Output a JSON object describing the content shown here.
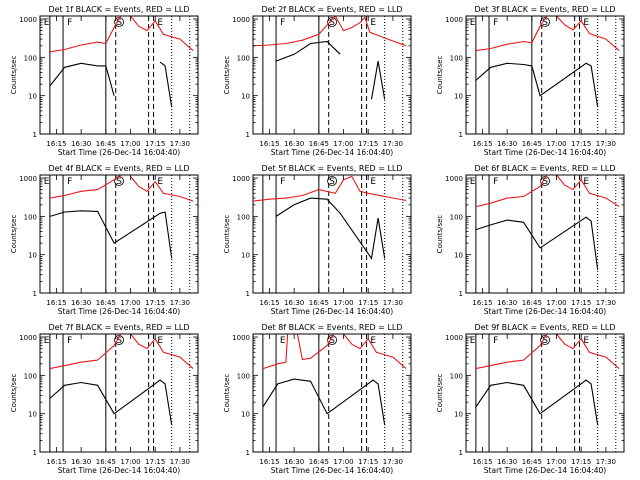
{
  "figure": {
    "background": "#ffffff",
    "axis_color": "#000000",
    "events_color": "#000000",
    "lld_color": "#e8191d",
    "ylabel": "Counts/sec",
    "xlabel": "Start Time (26-Dec-14 16:04:40)",
    "x_tick_labels": [
      "16:15",
      "16:30",
      "16:45",
      "17:00",
      "17:15",
      "17:30"
    ],
    "y_tick_labels": [
      "1",
      "10",
      "100",
      "1000"
    ]
  },
  "chart_data": [
    {
      "type": "line",
      "title": "Det 1f BLACK = Events, RED = LLD",
      "xlabel": "Start Time (26-Dec-14 16:04:40)",
      "ylabel": "Counts/sec",
      "yscale": "log",
      "ylim": [
        1,
        1200
      ],
      "xlim": [
        "16:05",
        "17:41"
      ],
      "x_ticks": [
        "16:15",
        "16:30",
        "16:45",
        "17:00",
        "17:15",
        "17:30"
      ],
      "marker_letters": [
        "E",
        "F",
        "S",
        "E"
      ],
      "series": [
        {
          "name": "Events",
          "color": "#000000",
          "x": [
            "16:11",
            "16:20",
            "16:30",
            "16:40",
            "16:45",
            "16:50",
            "17:10",
            "17:18",
            "17:21",
            "17:25"
          ],
          "y": [
            18,
            55,
            70,
            60,
            60,
            10,
            null,
            75,
            60,
            5
          ]
        },
        {
          "name": "LLD",
          "color": "#e8191d",
          "x": [
            "16:11",
            "16:20",
            "16:30",
            "16:40",
            "16:45",
            "16:50",
            "16:54",
            "16:56",
            "17:00",
            "17:05",
            "17:10",
            "17:15",
            "17:20",
            "17:30",
            "17:38"
          ],
          "y": [
            140,
            160,
            210,
            250,
            230,
            600,
            1200,
            null,
            1200,
            650,
            500,
            900,
            400,
            300,
            150
          ]
        }
      ]
    },
    {
      "type": "line",
      "title": "Det 2f BLACK = Events, RED = LLD",
      "xlabel": "Start Time (26-Dec-14 16:04:40)",
      "ylabel": "Counts/sec",
      "yscale": "log",
      "ylim": [
        1,
        1200
      ],
      "xlim": [
        "16:05",
        "17:41"
      ],
      "x_ticks": [
        "16:15",
        "16:30",
        "16:45",
        "17:00",
        "17:15",
        "17:30"
      ],
      "marker_letters": [
        "F",
        "S",
        "E"
      ],
      "series": [
        {
          "name": "Events",
          "color": "#000000",
          "x": [
            "16:19",
            "16:30",
            "16:40",
            "16:50",
            "16:58",
            "17:15",
            "17:17",
            "17:21",
            "17:25"
          ],
          "y": [
            80,
            120,
            230,
            260,
            120,
            null,
            8,
            80,
            8
          ]
        },
        {
          "name": "LLD",
          "color": "#e8191d",
          "x": [
            "16:05",
            "16:15",
            "16:25",
            "16:35",
            "16:45",
            "16:55",
            "17:00",
            "17:05",
            "17:10",
            "17:13",
            "17:16",
            "17:25",
            "17:38"
          ],
          "y": [
            200,
            210,
            230,
            280,
            400,
            1200,
            500,
            600,
            800,
            1100,
            450,
            320,
            200
          ]
        }
      ]
    },
    {
      "type": "line",
      "title": "Det 3f BLACK = Events, RED = LLD",
      "xlabel": "Start Time (26-Dec-14 16:04:40)",
      "ylabel": "Counts/sec",
      "yscale": "log",
      "ylim": [
        1,
        1200
      ],
      "xlim": [
        "16:05",
        "17:41"
      ],
      "x_ticks": [
        "16:15",
        "16:30",
        "16:45",
        "17:00",
        "17:15",
        "17:30"
      ],
      "marker_letters": [
        "E",
        "F",
        "S",
        "E"
      ],
      "series": [
        {
          "name": "Events",
          "color": "#000000",
          "x": [
            "16:11",
            "16:20",
            "16:30",
            "16:40",
            "16:45",
            "16:50",
            "17:18",
            "17:21",
            "17:25"
          ],
          "y": [
            25,
            55,
            70,
            65,
            60,
            10,
            70,
            60,
            5
          ]
        },
        {
          "name": "LLD",
          "color": "#e8191d",
          "x": [
            "16:11",
            "16:20",
            "16:30",
            "16:40",
            "16:45",
            "16:50",
            "16:54",
            "16:56",
            "17:00",
            "17:05",
            "17:10",
            "17:15",
            "17:20",
            "17:30",
            "17:38"
          ],
          "y": [
            150,
            170,
            220,
            260,
            240,
            650,
            1200,
            null,
            1200,
            700,
            520,
            900,
            420,
            300,
            150
          ]
        }
      ]
    },
    {
      "type": "line",
      "title": "Det 4f BLACK = Events, RED = LLD",
      "xlabel": "Start Time (26-Dec-14 16:04:40)",
      "ylabel": "Counts/sec",
      "yscale": "log",
      "ylim": [
        1,
        1200
      ],
      "xlim": [
        "16:05",
        "17:41"
      ],
      "x_ticks": [
        "16:15",
        "16:30",
        "16:45",
        "17:00",
        "17:15",
        "17:30"
      ],
      "marker_letters": [
        "E",
        "F",
        "S",
        "E"
      ],
      "series": [
        {
          "name": "Events",
          "color": "#000000",
          "x": [
            "16:11",
            "16:20",
            "16:30",
            "16:40",
            "16:50",
            "17:18",
            "17:21",
            "17:25"
          ],
          "y": [
            100,
            130,
            140,
            135,
            20,
            120,
            130,
            8
          ]
        },
        {
          "name": "LLD",
          "color": "#e8191d",
          "x": [
            "16:11",
            "16:20",
            "16:30",
            "16:40",
            "16:50",
            "16:54",
            "16:56",
            "17:00",
            "17:05",
            "17:10",
            "17:15",
            "17:20",
            "17:30",
            "17:38"
          ],
          "y": [
            300,
            350,
            450,
            500,
            900,
            1200,
            null,
            1100,
            600,
            450,
            800,
            400,
            330,
            250
          ]
        }
      ]
    },
    {
      "type": "line",
      "title": "Det 5f BLACK = Events, RED = LLD",
      "xlabel": "Start Time (26-Dec-14 16:04:40)",
      "ylabel": "Counts/sec",
      "yscale": "log",
      "ylim": [
        1,
        1200
      ],
      "xlim": [
        "16:05",
        "17:41"
      ],
      "x_ticks": [
        "16:15",
        "16:30",
        "16:45",
        "17:00",
        "17:15",
        "17:30"
      ],
      "marker_letters": [
        "F",
        "S",
        "E"
      ],
      "series": [
        {
          "name": "Events",
          "color": "#000000",
          "x": [
            "16:19",
            "16:30",
            "16:40",
            "16:50",
            "16:58",
            "17:17",
            "17:21",
            "17:25"
          ],
          "y": [
            100,
            200,
            300,
            280,
            120,
            8,
            90,
            8
          ]
        },
        {
          "name": "LLD",
          "color": "#e8191d",
          "x": [
            "16:05",
            "16:15",
            "16:25",
            "16:35",
            "16:45",
            "16:55",
            "17:00",
            "17:05",
            "17:10",
            "17:15",
            "17:25",
            "17:38"
          ],
          "y": [
            250,
            280,
            300,
            350,
            500,
            400,
            900,
            1100,
            450,
            400,
            330,
            260
          ]
        }
      ]
    },
    {
      "type": "line",
      "title": "Det 6f BLACK = Events, RED = LLD",
      "xlabel": "Start Time (26-Dec-14 16:04:40)",
      "ylabel": "Counts/sec",
      "yscale": "log",
      "ylim": [
        1,
        1200
      ],
      "xlim": [
        "16:05",
        "17:41"
      ],
      "x_ticks": [
        "16:15",
        "16:30",
        "16:45",
        "17:00",
        "17:15",
        "17:30"
      ],
      "marker_letters": [
        "E",
        "F",
        "S",
        "E"
      ],
      "series": [
        {
          "name": "Events",
          "color": "#000000",
          "x": [
            "16:11",
            "16:20",
            "16:30",
            "16:40",
            "16:50",
            "17:18",
            "17:21",
            "17:25"
          ],
          "y": [
            45,
            60,
            80,
            70,
            15,
            95,
            75,
            4
          ]
        },
        {
          "name": "LLD",
          "color": "#e8191d",
          "x": [
            "16:11",
            "16:20",
            "16:30",
            "16:40",
            "16:50",
            "16:54",
            "16:56",
            "17:00",
            "17:05",
            "17:10",
            "17:15",
            "17:20",
            "17:30",
            "17:38"
          ],
          "y": [
            180,
            220,
            300,
            330,
            600,
            1200,
            null,
            1200,
            650,
            500,
            900,
            400,
            300,
            180
          ]
        }
      ]
    },
    {
      "type": "line",
      "title": "Det 7f BLACK = Events, RED = LLD",
      "xlabel": "Start Time (26-Dec-14 16:04:40)",
      "ylabel": "Counts/sec",
      "yscale": "log",
      "ylim": [
        1,
        1200
      ],
      "xlim": [
        "16:05",
        "17:41"
      ],
      "x_ticks": [
        "16:15",
        "16:30",
        "16:45",
        "17:00",
        "17:15",
        "17:30"
      ],
      "marker_letters": [
        "E",
        "F",
        "S",
        "E"
      ],
      "series": [
        {
          "name": "Events",
          "color": "#000000",
          "x": [
            "16:11",
            "16:20",
            "16:30",
            "16:40",
            "16:50",
            "17:18",
            "17:21",
            "17:25"
          ],
          "y": [
            25,
            55,
            65,
            55,
            10,
            75,
            60,
            5
          ]
        },
        {
          "name": "LLD",
          "color": "#e8191d",
          "x": [
            "16:11",
            "16:20",
            "16:30",
            "16:40",
            "16:50",
            "16:54",
            "16:56",
            "17:00",
            "17:05",
            "17:10",
            "17:15",
            "17:20",
            "17:30",
            "17:38"
          ],
          "y": [
            150,
            180,
            220,
            250,
            600,
            1200,
            null,
            1200,
            650,
            500,
            900,
            400,
            300,
            150
          ]
        }
      ]
    },
    {
      "type": "line",
      "title": "Det 8f BLACK = Events, RED = LLD",
      "xlabel": "Start Time (26-Dec-14 16:04:40)",
      "ylabel": "Counts/sec",
      "yscale": "log",
      "ylim": [
        1,
        1200
      ],
      "xlim": [
        "16:05",
        "17:41"
      ],
      "x_ticks": [
        "16:15",
        "16:30",
        "16:45",
        "17:00",
        "17:15",
        "17:30"
      ],
      "marker_letters": [
        "E",
        "S",
        "E"
      ],
      "series": [
        {
          "name": "Events",
          "color": "#000000",
          "x": [
            "16:11",
            "16:20",
            "16:30",
            "16:40",
            "16:50",
            "17:18",
            "17:21",
            "17:25"
          ],
          "y": [
            15,
            60,
            80,
            70,
            10,
            75,
            60,
            5
          ]
        },
        {
          "name": "LLD",
          "color": "#e8191d",
          "x": [
            "16:11",
            "16:20",
            "16:25",
            "16:26",
            "16:32",
            "16:35",
            "16:40",
            "16:50",
            "16:54",
            "16:56",
            "17:00",
            "17:05",
            "17:10",
            "17:15",
            "17:20",
            "17:30",
            "17:38"
          ],
          "y": [
            150,
            200,
            220,
            1200,
            1200,
            260,
            280,
            600,
            1200,
            null,
            1200,
            650,
            500,
            900,
            400,
            300,
            150
          ]
        }
      ]
    },
    {
      "type": "line",
      "title": "Det 9f BLACK = Events, RED = LLD",
      "xlabel": "Start Time (26-Dec-14 16:04:40)",
      "ylabel": "Counts/sec",
      "yscale": "log",
      "ylim": [
        1,
        1200
      ],
      "xlim": [
        "16:05",
        "17:41"
      ],
      "x_ticks": [
        "16:15",
        "16:30",
        "16:45",
        "17:00",
        "17:15",
        "17:30"
      ],
      "marker_letters": [
        "E",
        "F",
        "S",
        "E"
      ],
      "series": [
        {
          "name": "Events",
          "color": "#000000",
          "x": [
            "16:11",
            "16:20",
            "16:30",
            "16:40",
            "16:50",
            "17:18",
            "17:21",
            "17:25"
          ],
          "y": [
            15,
            55,
            65,
            55,
            10,
            75,
            60,
            5
          ]
        },
        {
          "name": "LLD",
          "color": "#e8191d",
          "x": [
            "16:11",
            "16:20",
            "16:30",
            "16:40",
            "16:50",
            "16:54",
            "16:56",
            "17:00",
            "17:05",
            "17:10",
            "17:15",
            "17:20",
            "17:30",
            "17:38"
          ],
          "y": [
            150,
            180,
            220,
            250,
            600,
            1200,
            null,
            1200,
            650,
            500,
            900,
            400,
            300,
            150
          ]
        }
      ]
    }
  ]
}
